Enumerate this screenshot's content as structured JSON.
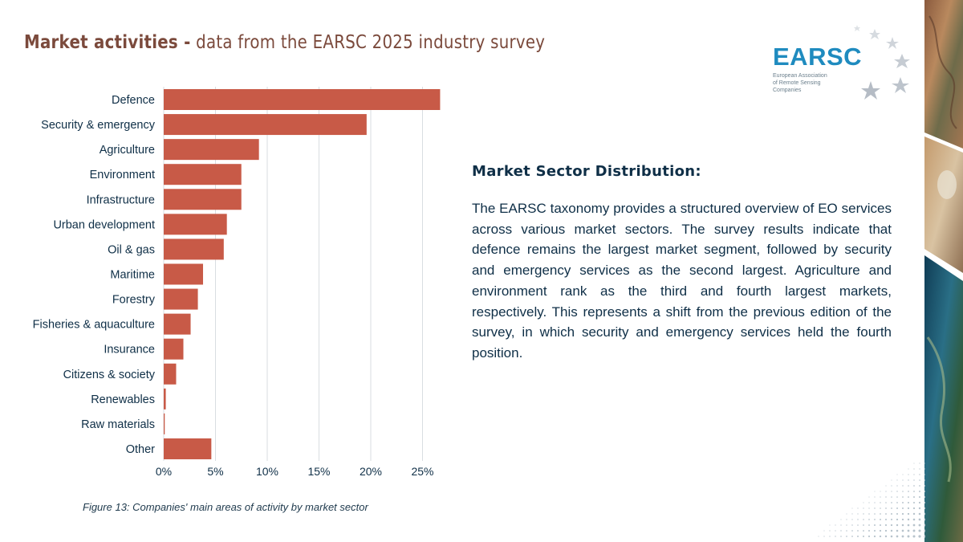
{
  "header": {
    "title_bold": "Market activities -",
    "title_rest": " data from the EARSC 2025 industry survey"
  },
  "logo": {
    "name": "EARSC",
    "subtitle_lines": [
      "European Association",
      "of Remote Sensing",
      "Companies"
    ],
    "icon": "stars-icon"
  },
  "chart_data": {
    "type": "bar",
    "orientation": "horizontal",
    "categories": [
      "Defence",
      "Security & emergency",
      "Agriculture",
      "Environment",
      "Infrastructure",
      "Urban development",
      "Oil & gas",
      "Maritime",
      "Forestry",
      "Fisheries & aquaculture",
      "Insurance",
      "Citizens & society",
      "Renewables",
      "Raw materials",
      "Other"
    ],
    "values": [
      26.7,
      19.6,
      9.2,
      7.5,
      7.5,
      6.1,
      5.8,
      3.8,
      3.3,
      2.6,
      1.9,
      1.2,
      0.2,
      0.1,
      4.6
    ],
    "value_unit": "%",
    "xlim": [
      0,
      27
    ],
    "x_ticks": [
      0,
      5,
      10,
      15,
      20,
      25
    ],
    "x_tick_labels": [
      "0%",
      "5%",
      "10%",
      "15%",
      "20%",
      "25%"
    ],
    "grid": "vertical",
    "bar_color": "#c85a47",
    "caption": "Figure 13: Companies' main areas of activity by market sector"
  },
  "text_panel": {
    "heading": "Market Sector Distribution:",
    "body": "The EARSC taxonomy provides a structured overview of EO services across various market sectors. The survey results indicate that defence remains the largest market segment, followed by security and emergency services as the second largest. Agriculture and environment rank as the third and fourth largest markets, respectively. This represents a shift from the previous edition of the survey, in which security and emergency services held the fourth position."
  },
  "colors": {
    "title": "#7b4a3c",
    "brand_blue": "#1f8bbf",
    "text_dark": "#0f2f47"
  }
}
